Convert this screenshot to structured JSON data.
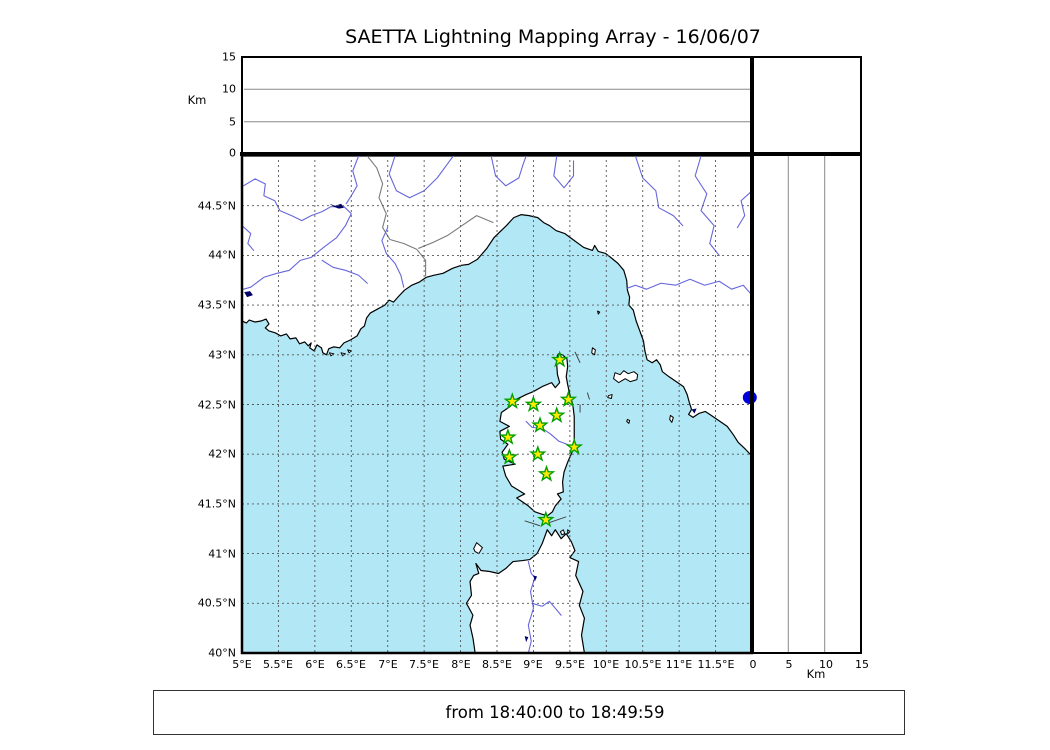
{
  "title": "SAETTA Lightning Mapping Array - 16/06/07",
  "caption": {
    "text": "from 18:40:00 to 18:49:59"
  },
  "axes": {
    "top": {
      "unit_label": "Km",
      "ticks": [
        "15",
        "10",
        "5",
        "0"
      ]
    },
    "right_bottom": {
      "unit_label": "Km",
      "ticks": [
        "0",
        "5",
        "10",
        "15"
      ]
    },
    "lat_ticks": [
      "44.5°N",
      "44°N",
      "43.5°N",
      "43°N",
      "42.5°N",
      "42°N",
      "41.5°N",
      "41°N",
      "40.5°N",
      "40°N"
    ],
    "lon_ticks": [
      "5°E",
      "5.5°E",
      "6°E",
      "6.5°E",
      "7°E",
      "7.5°E",
      "8°E",
      "8.5°E",
      "9°E",
      "9.5°E",
      "10°E",
      "10.5°E",
      "11°E",
      "11.5°E"
    ]
  },
  "colors": {
    "sea": "#b2e8f5",
    "land": "#ffffff",
    "coast": "#000000",
    "river": "#6666dd",
    "admin_border": "#7a7a7a",
    "lake": "#000066",
    "grid": "#555555",
    "star_fill": "#ffe900",
    "star_edge": "#00a000",
    "flash_dot": "#0000dd",
    "frame": "#000000"
  },
  "chart_data": {
    "type": "scatter",
    "title": "SAETTA Lightning Mapping Array - 16/06/07",
    "time_window": {
      "from": "18:40:00",
      "to": "18:49:59"
    },
    "map_extent": {
      "lon_min": 5,
      "lon_max": 12,
      "lat_min": 40,
      "lat_max": 45,
      "grid_step_deg": 0.5
    },
    "altitude_axis_km": {
      "min": 0,
      "max": 15,
      "ticks": [
        0,
        5,
        10,
        15
      ],
      "gridlines_km": [
        5,
        10
      ]
    },
    "legend": {
      "station_marker": "yellow star with green edge",
      "flash_marker": "blue filled dot"
    },
    "stations": [
      {
        "lon": 9.36,
        "lat": 42.95
      },
      {
        "lon": 8.71,
        "lat": 42.53
      },
      {
        "lon": 9.0,
        "lat": 42.5
      },
      {
        "lon": 9.48,
        "lat": 42.55
      },
      {
        "lon": 9.32,
        "lat": 42.39
      },
      {
        "lon": 9.09,
        "lat": 42.29
      },
      {
        "lon": 8.65,
        "lat": 42.17
      },
      {
        "lon": 9.56,
        "lat": 42.07
      },
      {
        "lon": 8.67,
        "lat": 41.97
      },
      {
        "lon": 9.06,
        "lat": 42.0
      },
      {
        "lon": 9.18,
        "lat": 41.8
      },
      {
        "lon": 9.17,
        "lat": 41.34
      }
    ],
    "flash_points": [
      {
        "lon": 11.97,
        "lat": 42.57,
        "alt_km": 0
      }
    ]
  }
}
